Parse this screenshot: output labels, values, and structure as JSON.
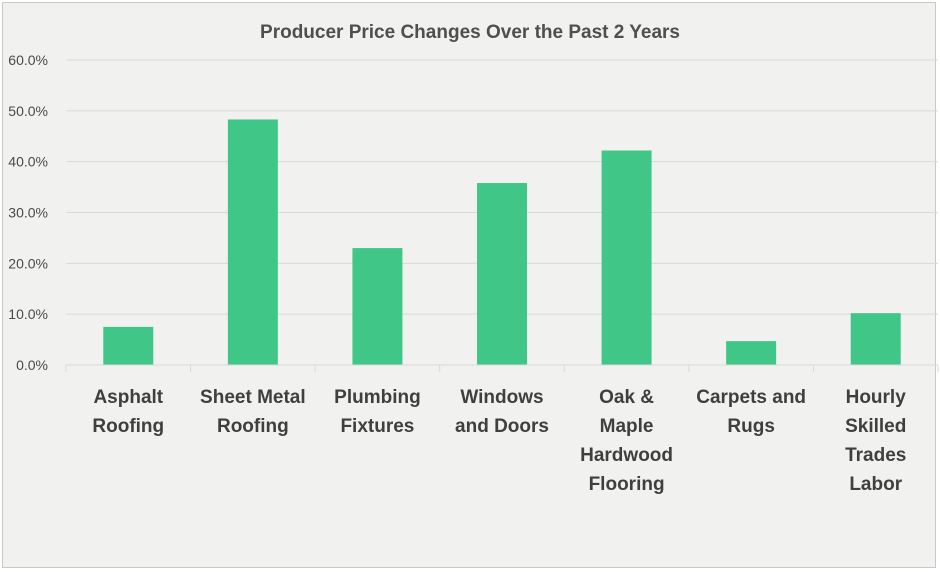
{
  "chart_data": {
    "type": "bar",
    "title": "Producer Price Changes Over the Past 2 Years",
    "xlabel": "",
    "ylabel": "",
    "categories": [
      [
        "Asphalt",
        "Roofing"
      ],
      [
        "Sheet Metal",
        "Roofing"
      ],
      [
        "Plumbing",
        "Fixtures"
      ],
      [
        "Windows",
        "and Doors"
      ],
      [
        "Oak &",
        "Maple",
        "Hardwood",
        "Flooring"
      ],
      [
        "Carpets and",
        "Rugs"
      ],
      [
        "Hourly",
        "Skilled",
        "Trades",
        "Labor"
      ]
    ],
    "values": [
      7.5,
      48.3,
      23.0,
      35.8,
      42.2,
      4.7,
      10.2
    ],
    "ylim": [
      0,
      60
    ],
    "yticks": [
      "0.0%",
      "10.0%",
      "20.0%",
      "30.0%",
      "40.0%",
      "50.0%",
      "60.0%"
    ],
    "grid": true,
    "legend": "none",
    "bar_color": "#40c787",
    "grid_color": "#d9d9d9",
    "background_color": "#f1f2ef"
  }
}
